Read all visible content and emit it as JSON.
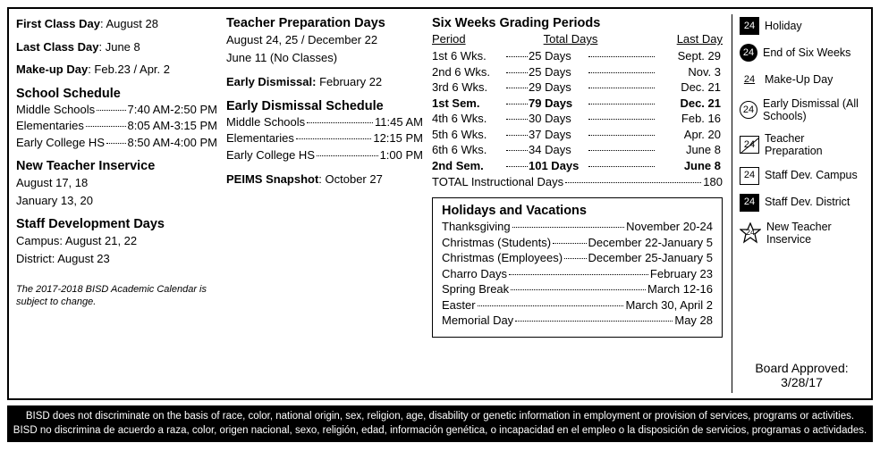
{
  "col1": {
    "firstClassLabel": "First Class Day",
    "firstClassValue": ": August 28",
    "lastClassLabel": "Last Class Day",
    "lastClassValue": ": June 8",
    "makeupLabel": "Make-up Day",
    "makeupValue": ":  Feb.23 / Apr. 2",
    "schoolScheduleTitle": "School Schedule",
    "schedule": [
      {
        "l": "Middle Schools",
        "r": "7:40 AM-2:50 PM"
      },
      {
        "l": "Elementaries",
        "r": "8:05 AM-3:15 PM"
      },
      {
        "l": "Early College HS",
        "r": "8:50 AM-4:00 PM"
      }
    ],
    "newTeacherTitle": "New Teacher Inservice",
    "newTeacherLine1": "August 17, 18",
    "newTeacherLine2": "January 13, 20",
    "staffDevTitle": "Staff Development Days",
    "staffDevLine1": "Campus: August 21, 22",
    "staffDevLine2": "District: August 23",
    "footnote": "The 2017-2018 BISD Academic Calendar is subject to change."
  },
  "col2": {
    "teacherPrepTitle": "Teacher Preparation Days",
    "teacherPrepLine1": "August 24, 25 / December 22",
    "teacherPrepLine2": "June 11 (No Classes)",
    "earlyDismissLabel": "Early Dismissal:",
    "earlyDismissValue": " February 22",
    "earlyDismissSchedTitle": "Early Dismissal Schedule",
    "dismissSchedule": [
      {
        "l": "Middle Schools",
        "r": "11:45 AM"
      },
      {
        "l": "Elementaries",
        "r": "12:15 PM"
      },
      {
        "l": "Early College HS",
        "r": "1:00 PM"
      }
    ],
    "peimsLabel": "PEIMS Snapshot",
    "peimsValue": ": October 27"
  },
  "grading": {
    "title": "Six Weeks Grading Periods",
    "headers": {
      "period": "Period",
      "days": "Total Days",
      "last": "Last Day"
    },
    "rows": [
      {
        "p": "1st 6 Wks.",
        "d": "25 Days",
        "ld": "Sept. 29",
        "bold": false
      },
      {
        "p": "2nd 6 Wks.",
        "d": "25 Days",
        "ld": "Nov. 3",
        "bold": false
      },
      {
        "p": "3rd 6 Wks.",
        "d": "29 Days",
        "ld": "Dec. 21",
        "bold": false
      },
      {
        "p": "1st Sem.",
        "d": "79 Days",
        "ld": "Dec. 21",
        "bold": true
      },
      {
        "p": "4th 6 Wks.",
        "d": "30 Days",
        "ld": "Feb. 16",
        "bold": false
      },
      {
        "p": "5th 6 Wks.",
        "d": "37 Days",
        "ld": "Apr. 20",
        "bold": false
      },
      {
        "p": "6th 6 Wks.",
        "d": "34 Days",
        "ld": "June 8",
        "bold": false
      },
      {
        "p": "2nd Sem.",
        "d": "101 Days",
        "ld": "June 8",
        "bold": true
      }
    ],
    "totalLine": {
      "l": "TOTAL Instructional Days",
      "r": "180"
    }
  },
  "holidays": {
    "title": "Holidays and Vacations",
    "rows": [
      {
        "l": "Thanksgiving",
        "r": "November 20-24"
      },
      {
        "l": "Christmas (Students)",
        "r": "December 22-January 5"
      },
      {
        "l": "Christmas (Employees)",
        "r": "December 25-January 5"
      },
      {
        "l": "Charro Days",
        "r": "February 23"
      },
      {
        "l": "Spring Break",
        "r": "March 12-16"
      },
      {
        "l": "Easter",
        "r": "March 30, April 2"
      },
      {
        "l": "Memorial Day",
        "r": "May 28"
      }
    ]
  },
  "legend": [
    {
      "icon": "sq-inv",
      "num": "24",
      "label": "Holiday"
    },
    {
      "icon": "circ-inv",
      "num": "24",
      "label": "End of Six Weeks"
    },
    {
      "icon": "ul",
      "num": "24",
      "label": "Make-Up Day"
    },
    {
      "icon": "circ",
      "num": "24",
      "label": "Early Dismissal (All Schools)"
    },
    {
      "icon": "diag",
      "num": "24",
      "label": "Teacher Preparation"
    },
    {
      "icon": "sq",
      "num": "24",
      "label": "Staff Dev. Campus"
    },
    {
      "icon": "sq-border-inv",
      "num": "24",
      "label": "Staff Dev. District"
    },
    {
      "icon": "star",
      "num": "24",
      "label": "New Teacher Inservice"
    }
  ],
  "board": {
    "label": "Board Approved:",
    "date": "3/28/17"
  },
  "disclaimer": {
    "en": "BISD does not discriminate on the basis of race, color, national origin, sex, religion, age, disability or genetic information in employment or provision of services, programs or activities.",
    "es": "BISD no discrimina de acuerdo a raza, color, origen nacional, sexo, religión, edad, información genética, o incapacidad en el empleo o la disposición de servicios, programas o actividades."
  }
}
